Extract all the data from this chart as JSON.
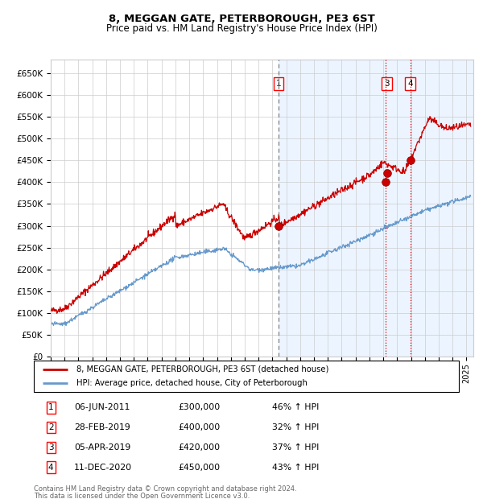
{
  "title1": "8, MEGGAN GATE, PETERBOROUGH, PE3 6ST",
  "title2": "Price paid vs. HM Land Registry's House Price Index (HPI)",
  "red_label": "8, MEGGAN GATE, PETERBOROUGH, PE3 6ST (detached house)",
  "blue_label": "HPI: Average price, detached house, City of Peterborough",
  "ylabel_ticks": [
    "£0",
    "£50K",
    "£100K",
    "£150K",
    "£200K",
    "£250K",
    "£300K",
    "£350K",
    "£400K",
    "£450K",
    "£500K",
    "£550K",
    "£600K",
    "£650K"
  ],
  "ytick_values": [
    0,
    50000,
    100000,
    150000,
    200000,
    250000,
    300000,
    350000,
    400000,
    450000,
    500000,
    550000,
    600000,
    650000
  ],
  "ylim": [
    0,
    680000
  ],
  "xlim_start": 1995.0,
  "xlim_end": 2025.5,
  "sale_points": [
    {
      "id": 1,
      "date_num": 2011.43,
      "price": 300000,
      "label": "1",
      "date_str": "06-JUN-2011",
      "pct": "46% ↑ HPI"
    },
    {
      "id": 2,
      "date_num": 2019.16,
      "price": 400000,
      "label": "2",
      "date_str": "28-FEB-2019",
      "pct": "32% ↑ HPI"
    },
    {
      "id": 3,
      "date_num": 2019.26,
      "price": 420000,
      "label": "3",
      "date_str": "05-APR-2019",
      "pct": "37% ↑ HPI"
    },
    {
      "id": 4,
      "date_num": 2020.95,
      "price": 450000,
      "label": "4",
      "date_str": "11-DEC-2020",
      "pct": "43% ↑ HPI"
    }
  ],
  "vline_dashed_date": 2011.43,
  "vlines_dotted_dates": [
    2019.16,
    2020.95
  ],
  "bg_fill_start": 2011.43,
  "bg_fill_end": 2025.5,
  "footer_line1": "Contains HM Land Registry data © Crown copyright and database right 2024.",
  "footer_line2": "This data is licensed under the Open Government Licence v3.0.",
  "red_color": "#cc0000",
  "blue_color": "#6699cc",
  "grid_color": "#cccccc",
  "bg_fill_color": "#ddeeff",
  "title_fontsize": 9.5,
  "subtitle_fontsize": 8.5
}
